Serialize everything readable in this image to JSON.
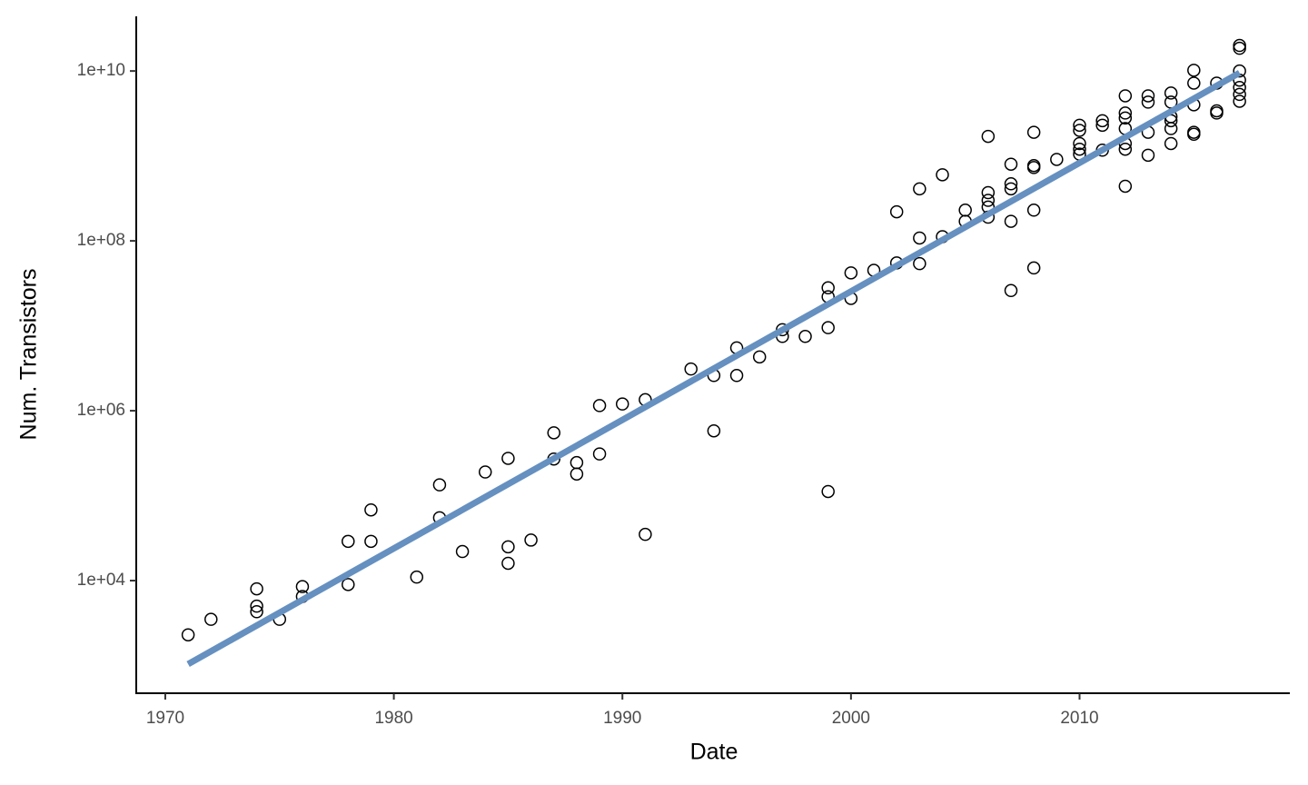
{
  "chart_data": {
    "type": "scatter",
    "x_label": "Date",
    "y_label": "Num. Transistors",
    "y_log": true,
    "xlim": [
      1968.73,
      2019.2
    ],
    "ylim": [
      472,
      44000000000
    ],
    "xticks": [
      1970,
      1980,
      1990,
      2000,
      2010
    ],
    "yticks": [
      {
        "value": 10000,
        "label": "1e+04"
      },
      {
        "value": 1000000,
        "label": "1e+06"
      },
      {
        "value": 100000000,
        "label": "1e+08"
      },
      {
        "value": 10000000000,
        "label": "1e+10"
      }
    ],
    "point_color": "#000000",
    "x": [
      1971,
      1972,
      1974,
      1974,
      1974,
      1975,
      1976,
      1976,
      1978,
      1978,
      1979,
      1979,
      1981,
      1982,
      1982,
      1983,
      1984,
      1985,
      1985,
      1985,
      1986,
      1987,
      1987,
      1988,
      1988,
      1989,
      1989,
      1990,
      1991,
      1991,
      1993,
      1994,
      1994,
      1995,
      1995,
      1996,
      1997,
      1997,
      1998,
      1999,
      1999,
      1999,
      1999,
      2000,
      2000,
      2001,
      2002,
      2002,
      2003,
      2003,
      2003,
      2004,
      2004,
      2005,
      2005,
      2006,
      2006,
      2006,
      2006,
      2006,
      2007,
      2007,
      2007,
      2007,
      2007,
      2008,
      2008,
      2008,
      2008,
      2008,
      2009,
      2010,
      2010,
      2010,
      2010,
      2010,
      2011,
      2011,
      2011,
      2012,
      2012,
      2012,
      2012,
      2012,
      2012,
      2012,
      2013,
      2013,
      2013,
      2013,
      2014,
      2014,
      2014,
      2014,
      2014,
      2014,
      2015,
      2015,
      2015,
      2015,
      2015,
      2016,
      2016,
      2016,
      2017,
      2017,
      2017,
      2017,
      2017,
      2017,
      2017
    ],
    "values": [
      2300,
      3500,
      8000,
      5000,
      4300,
      3500,
      8500,
      6500,
      29000,
      9000,
      68000,
      29000,
      11000,
      134000,
      55000,
      22000,
      190000,
      275000,
      25000,
      16000,
      30000,
      550000,
      270000,
      245000,
      180000,
      1150000,
      310000,
      1200000,
      1350000,
      35000,
      3100000,
      2600000,
      580000,
      5500000,
      2600000,
      4300000,
      9000000,
      7500000,
      7500000,
      28000000,
      22000000,
      9500000,
      112000,
      42000000,
      21000000,
      45000000,
      220000000,
      55000000,
      410000000,
      108000000,
      54000000,
      600000000,
      112000000,
      230000000,
      170000000,
      1700000000,
      370000000,
      300000000,
      250000000,
      190000000,
      800000000,
      470000000,
      410000000,
      170000000,
      26000000,
      1900000000,
      770000000,
      730000000,
      230000000,
      48000000,
      910000000,
      2300000000,
      2000000000,
      1400000000,
      1200000000,
      1050000000,
      2600000000,
      2300000000,
      1170000000,
      5100000000,
      3200000000,
      2800000000,
      2100000000,
      1400000000,
      1200000000,
      440000000,
      5100000000,
      4300000000,
      1900000000,
      1020000000,
      5500000000,
      4300000000,
      2900000000,
      2600000000,
      2100000000,
      1400000000,
      10200000000,
      7200000000,
      4000000000,
      1900000000,
      1800000000,
      7200000000,
      3400000000,
      3200000000,
      20000000000,
      18500000000,
      10000000000,
      7800000000,
      6400000000,
      5300000000,
      4400000000
    ],
    "fit": {
      "color": "#6590c0",
      "x": [
        1971,
        2017
      ],
      "values": [
        1040,
        9500000000
      ]
    }
  }
}
